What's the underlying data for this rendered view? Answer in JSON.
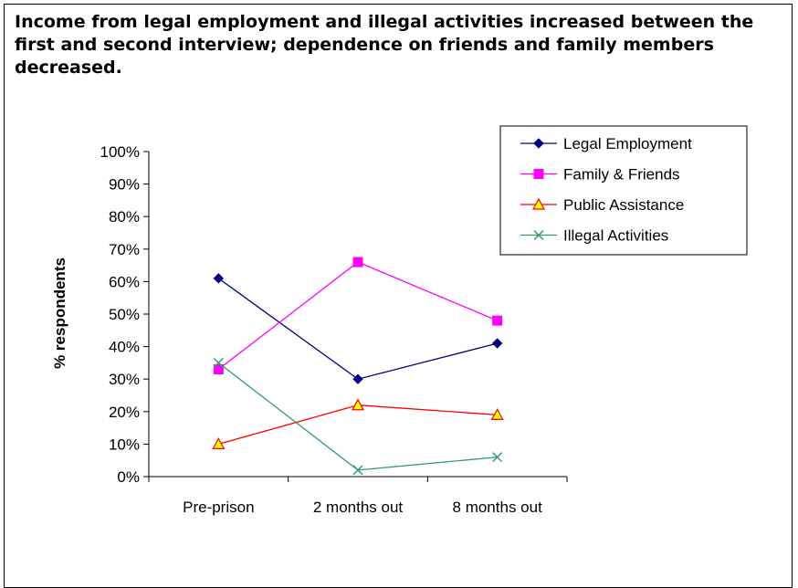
{
  "chart_data": {
    "type": "line",
    "title": "Income from legal employment and illegal activities increased between the first and second interview; dependence on friends and family members decreased.",
    "xlabel": "",
    "ylabel": "% respondents",
    "categories": [
      "Pre-prison",
      "2 months out",
      "8 months out"
    ],
    "y_ticks": [
      "0%",
      "10%",
      "20%",
      "30%",
      "40%",
      "50%",
      "60%",
      "70%",
      "80%",
      "90%",
      "100%"
    ],
    "ylim": [
      0,
      100
    ],
    "grid": false,
    "legend_position": "top-right",
    "series": [
      {
        "name": "Legal Employment",
        "values": [
          61,
          30,
          41
        ],
        "color": "#000080",
        "marker": "diamond"
      },
      {
        "name": "Family & Friends",
        "values": [
          33,
          66,
          48
        ],
        "color": "#ff00ff",
        "marker": "square"
      },
      {
        "name": "Public Assistance",
        "values": [
          10,
          22,
          19
        ],
        "color": "#ff0000",
        "marker": "triangle",
        "marker_fill": "#ffff00"
      },
      {
        "name": "Illegal Activities",
        "values": [
          35,
          2,
          6
        ],
        "color": "#339966",
        "marker": "x"
      }
    ]
  }
}
